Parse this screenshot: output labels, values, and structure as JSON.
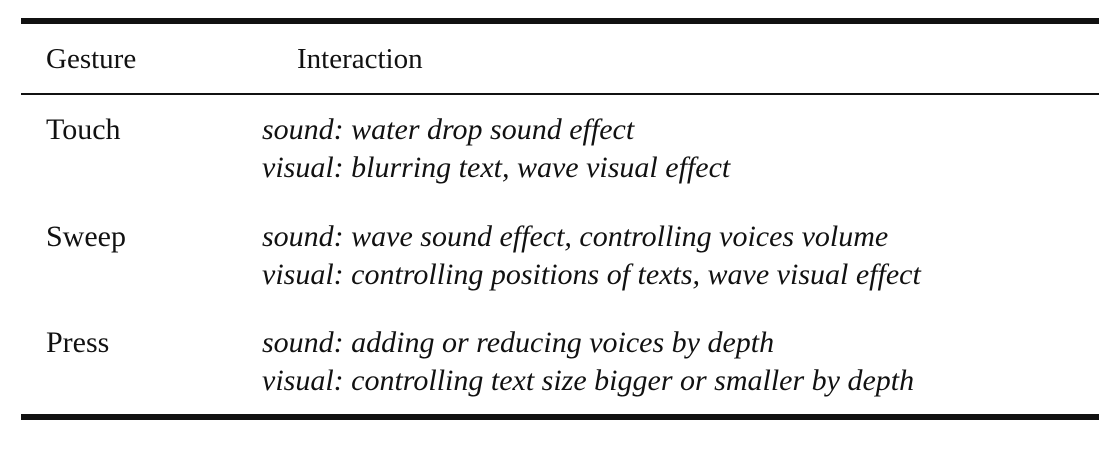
{
  "table": {
    "headers": {
      "gesture": "Gesture",
      "interaction": "Interaction"
    },
    "rows": [
      {
        "gesture": "Touch",
        "sound": "sound: water drop sound effect",
        "visual": "visual: blurring text, wave visual effect"
      },
      {
        "gesture": "Sweep",
        "sound": "sound: wave sound effect, controlling voices volume",
        "visual": "visual: controlling positions of texts, wave visual effect"
      },
      {
        "gesture": "Press",
        "sound": "sound: adding or reducing voices by depth",
        "visual": "visual: controlling text size bigger or smaller by depth"
      }
    ]
  }
}
